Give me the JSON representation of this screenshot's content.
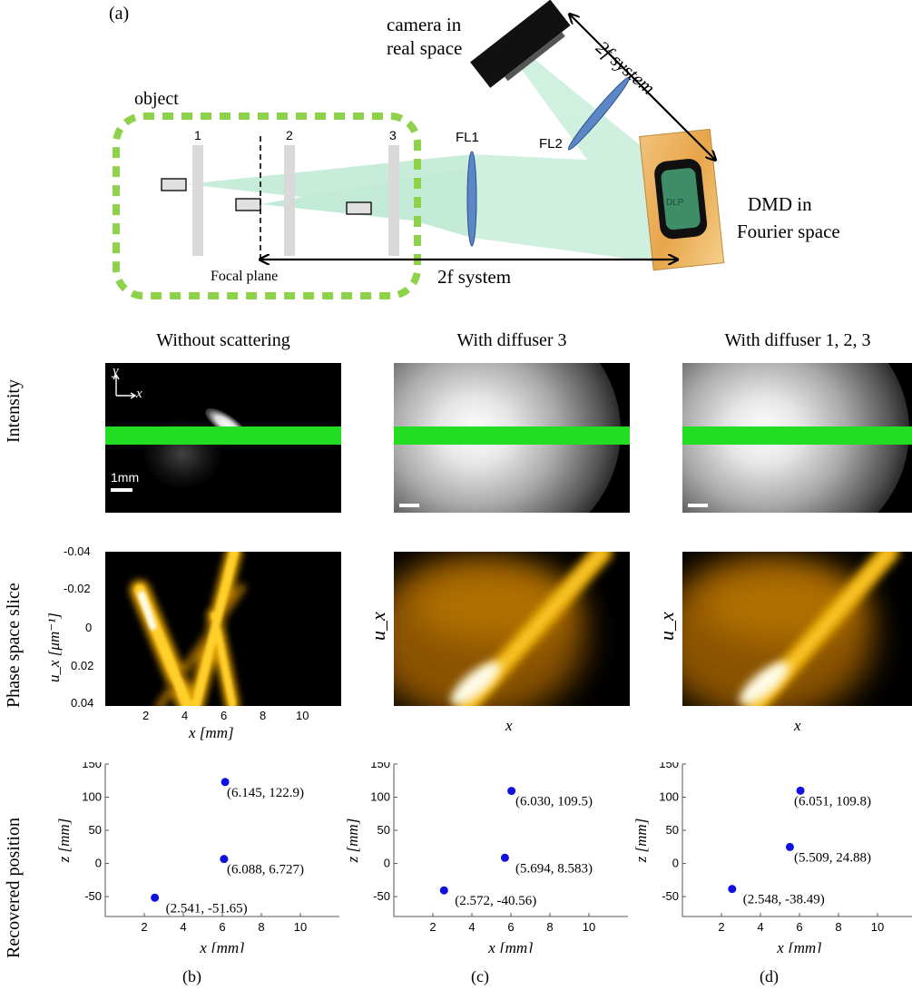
{
  "setup": {
    "panel_label": "(a)",
    "camera_label_line1": "camera in",
    "camera_label_line2": "real space",
    "twof_top_label": "2f system",
    "object_label": "object",
    "diffuser_labels": [
      "1",
      "2",
      "3"
    ],
    "fl1_label": "FL1",
    "fl2_label": "FL2",
    "dmd_label_line1": "DMD in",
    "dmd_label_line2": "Fourier space",
    "focal_plane_label": "Focal plane",
    "twof_bottom_label": "2f system",
    "dmd_chip_text": "DLP"
  },
  "columns": [
    {
      "title": "Without scattering",
      "sublabel": "(b)"
    },
    {
      "title": "With diffuser 3",
      "sublabel": "(c)"
    },
    {
      "title": "With diffuser 1, 2, 3",
      "sublabel": "(d)"
    }
  ],
  "row_labels": {
    "intensity": "Intensity",
    "phase": "Phase space slice",
    "recovered": "Recovered position"
  },
  "intensity": {
    "scale_bar_label": "1mm",
    "axis_y": "y",
    "axis_x": "x",
    "band_color": "#22dd22"
  },
  "phase": {
    "ylabel": "u_x [μm⁻¹]",
    "ylabel_short": "u_x",
    "xlabel": "x [mm]",
    "xlabel_short": "x",
    "y_ticks": [
      "-0.04",
      "-0.02",
      "0",
      "0.02",
      "0.04"
    ],
    "x_ticks": [
      "2",
      "4",
      "6",
      "8",
      "10"
    ]
  },
  "chart_data": [
    {
      "type": "scatter",
      "title": "",
      "xlabel": "x [mm]",
      "ylabel": "z [mm]",
      "xlim": [
        0,
        12
      ],
      "ylim": [
        -80,
        150
      ],
      "x_ticks": [
        2,
        4,
        6,
        8,
        10
      ],
      "y_ticks": [
        -50,
        0,
        50,
        100,
        150
      ],
      "points": [
        {
          "x": 6.145,
          "y": 122.9,
          "label": "(6.145, 122.9)"
        },
        {
          "x": 6.088,
          "y": 6.727,
          "label": "(6.088, 6.727)"
        },
        {
          "x": 2.541,
          "y": -51.65,
          "label": "(2.541, -51.65)"
        }
      ],
      "marker_color": "#1010e0"
    },
    {
      "type": "scatter",
      "title": "",
      "xlabel": "x [mm]",
      "ylabel": "z [mm]",
      "xlim": [
        0,
        12
      ],
      "ylim": [
        -80,
        150
      ],
      "x_ticks": [
        2,
        4,
        6,
        8,
        10
      ],
      "y_ticks": [
        -50,
        0,
        50,
        100,
        150
      ],
      "points": [
        {
          "x": 6.03,
          "y": 109.5,
          "label": "(6.030, 109.5)"
        },
        {
          "x": 5.694,
          "y": 8.583,
          "label": "(5.694, 8.583)"
        },
        {
          "x": 2.572,
          "y": -40.56,
          "label": "(2.572, -40.56)"
        }
      ],
      "marker_color": "#1010e0"
    },
    {
      "type": "scatter",
      "title": "",
      "xlabel": "x [mm]",
      "ylabel": "z [mm]",
      "xlim": [
        0,
        12
      ],
      "ylim": [
        -80,
        150
      ],
      "x_ticks": [
        2,
        4,
        6,
        8,
        10
      ],
      "y_ticks": [
        -50,
        0,
        50,
        100,
        150
      ],
      "points": [
        {
          "x": 6.051,
          "y": 109.8,
          "label": "(6.051, 109.8)"
        },
        {
          "x": 5.509,
          "y": 24.88,
          "label": "(5.509, 24.88)"
        },
        {
          "x": 2.548,
          "y": -38.49,
          "label": "(2.548, -38.49)"
        }
      ],
      "marker_color": "#1010e0"
    }
  ]
}
